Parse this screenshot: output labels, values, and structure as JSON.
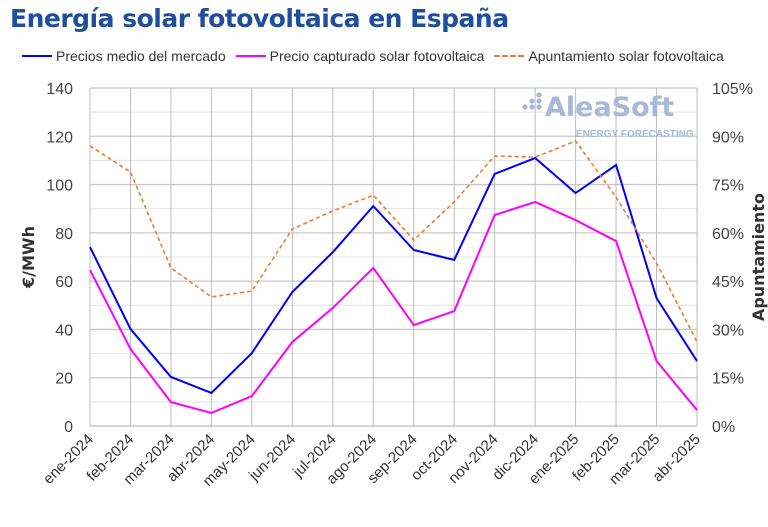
{
  "chart_data": {
    "type": "line",
    "title": "Energía solar fotovoltaica en España",
    "ylabel": "€/MWh",
    "y2label": "Apuntamiento",
    "ylim": [
      0,
      140
    ],
    "y2lim": [
      0,
      105
    ],
    "yticks": [
      "0",
      "20",
      "40",
      "60",
      "80",
      "100",
      "120",
      "140"
    ],
    "y2ticks": [
      "0%",
      "15%",
      "30%",
      "45%",
      "60%",
      "75%",
      "90%",
      "105%"
    ],
    "grid": true,
    "legend": "top",
    "categories": [
      "ene-2024",
      "feb-2024",
      "mar-2024",
      "abr-2024",
      "may-2024",
      "jun-2024",
      "jul-2024",
      "ago-2024",
      "sep-2024",
      "oct-2024",
      "nov-2024",
      "dic-2024",
      "ene-2025",
      "feb-2025",
      "mar-2025",
      "abr-2025"
    ],
    "series": [
      {
        "name": "Precios medio del mercado",
        "axis": "left",
        "color": "#0000ff",
        "style": "solid",
        "values": [
          74.1,
          40.2,
          20.3,
          13.7,
          30.2,
          55.5,
          72.0,
          91.1,
          72.9,
          68.8,
          104.4,
          111.0,
          96.5,
          108.1,
          53.0,
          26.9
        ]
      },
      {
        "name": "Precio capturado solar fotovoltaica",
        "axis": "left",
        "color": "#ff00ff",
        "style": "solid",
        "values": [
          64.6,
          31.9,
          9.9,
          5.4,
          12.4,
          34.8,
          48.9,
          65.5,
          41.8,
          47.6,
          87.4,
          92.8,
          85.3,
          76.6,
          26.9,
          6.6
        ]
      },
      {
        "name": "Apuntamiento solar fotovoltaica",
        "axis": "right",
        "color": "#ed7d31",
        "style": "dashed",
        "values": [
          87.0,
          78.9,
          49.1,
          40.1,
          41.9,
          61.2,
          66.8,
          71.7,
          57.8,
          69.6,
          83.9,
          83.5,
          88.5,
          71.1,
          50.6,
          26.1
        ]
      }
    ]
  },
  "watermark": {
    "brand": "AleaSoft",
    "tagline": "ENERGY FORECASTING"
  }
}
